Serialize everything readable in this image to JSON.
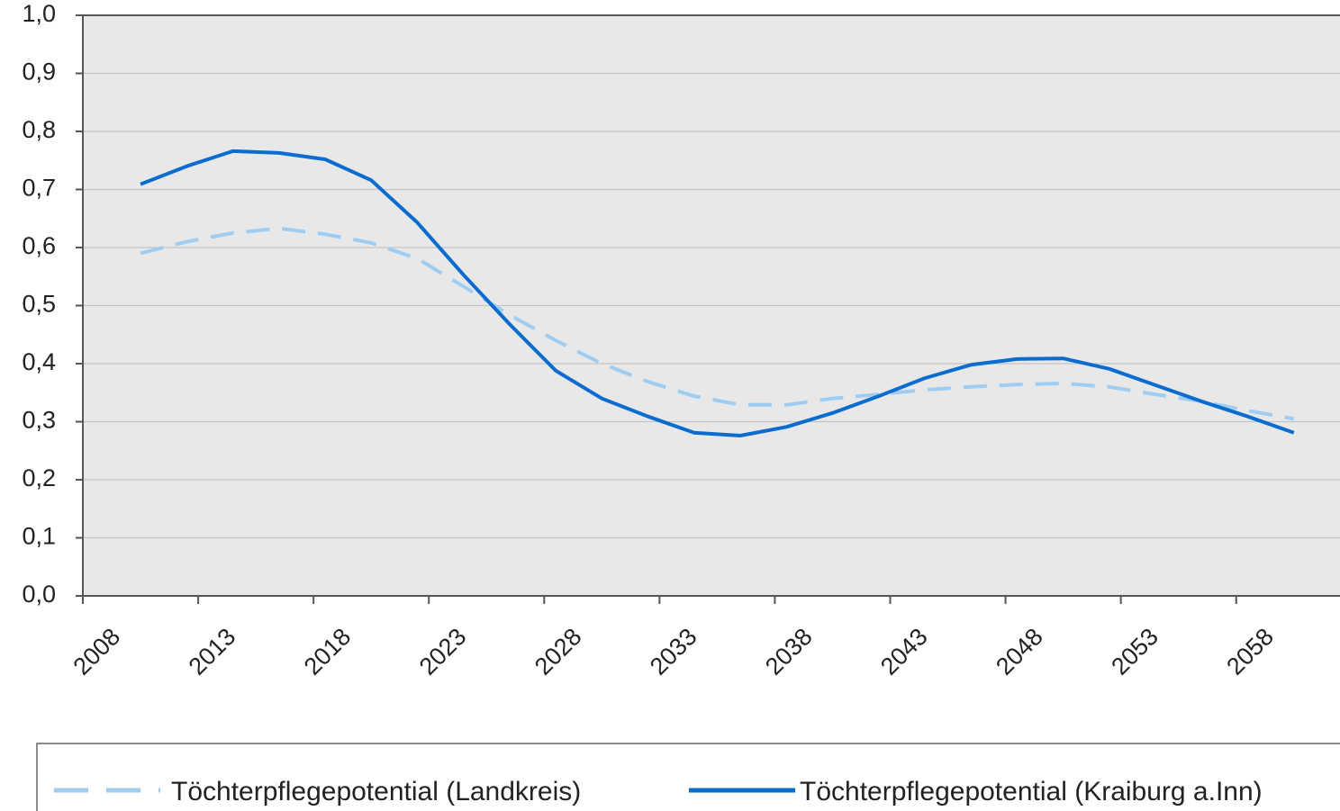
{
  "chart_data": {
    "type": "line",
    "x": [
      2010,
      2012,
      2014,
      2016,
      2018,
      2020,
      2022,
      2024,
      2026,
      2028,
      2030,
      2032,
      2034,
      2036,
      2038,
      2040,
      2042,
      2044,
      2046,
      2048,
      2050,
      2052,
      2054,
      2056,
      2058,
      2060
    ],
    "series": [
      {
        "name": "Töchterpflegepotential (Landkreis)",
        "color": "#9fcdf2",
        "dash": true,
        "values": [
          0.59,
          0.61,
          0.625,
          0.633,
          0.623,
          0.608,
          0.581,
          0.533,
          0.484,
          0.44,
          0.4,
          0.369,
          0.344,
          0.329,
          0.329,
          0.34,
          0.347,
          0.355,
          0.36,
          0.364,
          0.366,
          0.36,
          0.347,
          0.335,
          0.319,
          0.305
        ]
      },
      {
        "name": "Töchterpflegepotential (Kraiburg a.Inn)",
        "color": "#0a6ccf",
        "dash": false,
        "values": [
          0.709,
          0.74,
          0.766,
          0.763,
          0.752,
          0.716,
          0.643,
          0.553,
          0.468,
          0.388,
          0.34,
          0.309,
          0.281,
          0.276,
          0.291,
          0.315,
          0.344,
          0.375,
          0.398,
          0.408,
          0.409,
          0.391,
          0.363,
          0.335,
          0.309,
          0.281
        ]
      }
    ],
    "xlim": [
      2007.5,
      2062
    ],
    "xticks": [
      {
        "value": 2007.5,
        "label": "2008"
      },
      {
        "value": 2012.5,
        "label": "2013"
      },
      {
        "value": 2017.5,
        "label": "2018"
      },
      {
        "value": 2022.5,
        "label": "2023"
      },
      {
        "value": 2027.5,
        "label": "2028"
      },
      {
        "value": 2032.5,
        "label": "2033"
      },
      {
        "value": 2037.5,
        "label": "2038"
      },
      {
        "value": 2042.5,
        "label": "2043"
      },
      {
        "value": 2047.5,
        "label": "2048"
      },
      {
        "value": 2052.5,
        "label": "2053"
      },
      {
        "value": 2057.5,
        "label": "2058"
      }
    ],
    "ylim": [
      0,
      1
    ],
    "yticks": [
      {
        "value": 0,
        "label": "0,0"
      },
      {
        "value": 0.1,
        "label": "0,1"
      },
      {
        "value": 0.2,
        "label": "0,2"
      },
      {
        "value": 0.3,
        "label": "0,3"
      },
      {
        "value": 0.4,
        "label": "0,4"
      },
      {
        "value": 0.5,
        "label": "0,5"
      },
      {
        "value": 0.6,
        "label": "0,6"
      },
      {
        "value": 0.7,
        "label": "0,7"
      },
      {
        "value": 0.8,
        "label": "0,8"
      },
      {
        "value": 0.9,
        "label": "0,9"
      },
      {
        "value": 1,
        "label": "1,0"
      }
    ],
    "grid": true,
    "legend": "bottom"
  }
}
